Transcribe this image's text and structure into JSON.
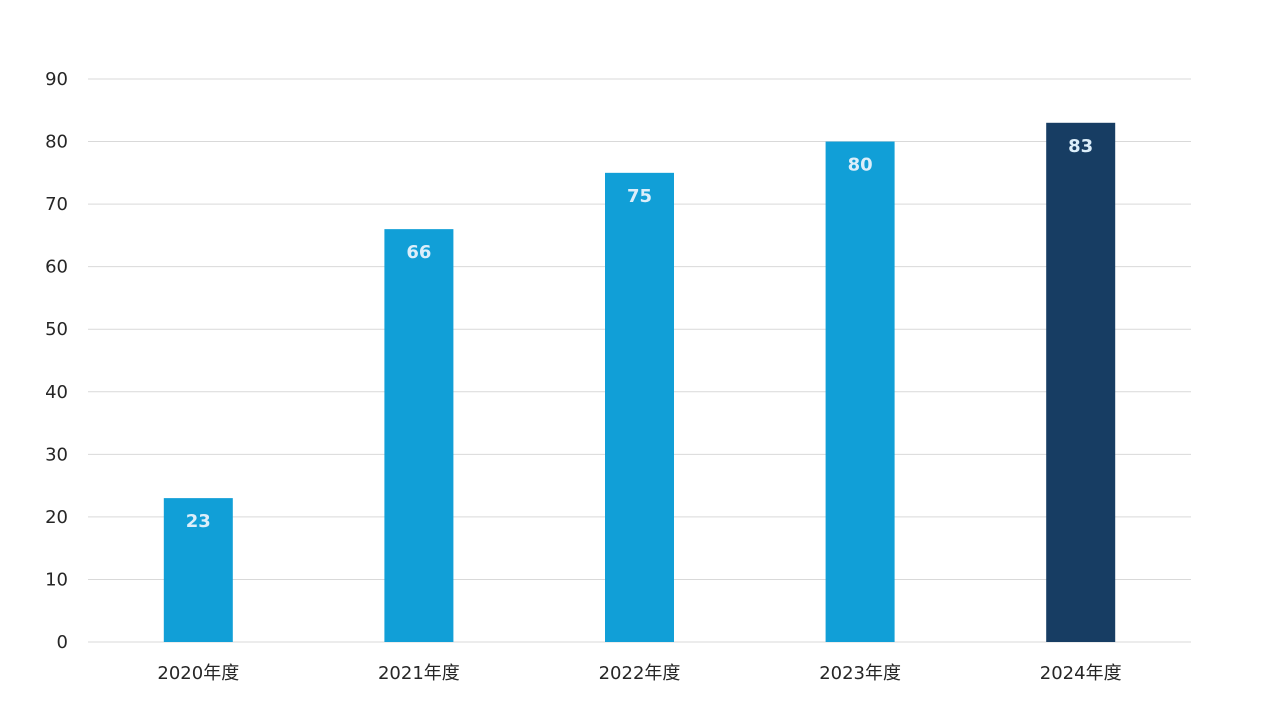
{
  "chart_data": {
    "type": "bar",
    "title": "",
    "xlabel": "",
    "ylabel": "",
    "categories": [
      "2020年度",
      "2021年度",
      "2022年度",
      "2023年度",
      "2024年度"
    ],
    "values": [
      23,
      66,
      75,
      80,
      83
    ],
    "data_labels": [
      "23",
      "66",
      "75",
      "80",
      "83"
    ],
    "ylim": [
      0,
      90
    ],
    "yticks": [
      0,
      10,
      20,
      30,
      40,
      50,
      60,
      70,
      80,
      90
    ],
    "ytick_labels": [
      "0",
      "10",
      "20",
      "30",
      "40",
      "50",
      "60",
      "70",
      "80",
      "90"
    ],
    "grid": true,
    "legend": "none",
    "colors": {
      "bar": "#119fd7",
      "highlight_bar": "#173d63",
      "data_label": "#dceefa",
      "grid": "#d9d9d9",
      "axis_text": "#262626"
    },
    "highlight_index": 4
  }
}
